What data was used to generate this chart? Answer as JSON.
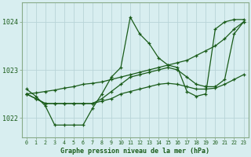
{
  "title": "Graphe pression niveau de la mer (hPa)",
  "bg_color": "#d8eef0",
  "grid_color": "#b8d4d8",
  "line_color": "#1a5c1a",
  "spine_color": "#88aa88",
  "xlim": [
    -0.5,
    23.5
  ],
  "ylim": [
    1021.6,
    1024.4
  ],
  "yticks": [
    1022,
    1023,
    1024
  ],
  "xticks": [
    0,
    1,
    2,
    3,
    4,
    5,
    6,
    7,
    8,
    9,
    10,
    11,
    12,
    13,
    14,
    15,
    16,
    17,
    18,
    19,
    20,
    21,
    22,
    23
  ],
  "series": [
    {
      "x": [
        0,
        1,
        2,
        3,
        4,
        5,
        6,
        7,
        8,
        9,
        10,
        11,
        12,
        13,
        14,
        15,
        16,
        17,
        18,
        19,
        20,
        21,
        22,
        23
      ],
      "y": [
        1022.6,
        1022.45,
        1022.25,
        1021.85,
        1021.85,
        1021.85,
        1021.85,
        1022.2,
        1022.5,
        1022.85,
        1023.05,
        1024.1,
        1023.75,
        1023.55,
        1023.25,
        1023.1,
        1023.05,
        1022.55,
        1022.45,
        1022.5,
        1023.85,
        1024.0,
        1024.05,
        1024.05
      ]
    },
    {
      "x": [
        0,
        1,
        2,
        3,
        4,
        5,
        6,
        7,
        8,
        9,
        10,
        11,
        12,
        13,
        14,
        15,
        16,
        17,
        18,
        19,
        20,
        21,
        22,
        23
      ],
      "y": [
        1022.5,
        1022.52,
        1022.55,
        1022.58,
        1022.62,
        1022.65,
        1022.7,
        1022.72,
        1022.75,
        1022.8,
        1022.85,
        1022.9,
        1022.95,
        1023.0,
        1023.05,
        1023.1,
        1023.15,
        1023.2,
        1023.3,
        1023.4,
        1023.5,
        1023.65,
        1023.85,
        1024.0
      ]
    },
    {
      "x": [
        0,
        1,
        2,
        3,
        4,
        5,
        6,
        7,
        8,
        9,
        10,
        11,
        12,
        13,
        14,
        15,
        16,
        17,
        18,
        19,
        20,
        21,
        22,
        23
      ],
      "y": [
        1022.5,
        1022.4,
        1022.3,
        1022.3,
        1022.3,
        1022.3,
        1022.3,
        1022.3,
        1022.35,
        1022.4,
        1022.5,
        1022.55,
        1022.6,
        1022.65,
        1022.7,
        1022.72,
        1022.7,
        1022.65,
        1022.6,
        1022.6,
        1022.62,
        1022.7,
        1022.8,
        1022.9
      ]
    },
    {
      "x": [
        0,
        1,
        2,
        3,
        4,
        5,
        6,
        7,
        8,
        9,
        10,
        11,
        12,
        13,
        14,
        15,
        16,
        17,
        18,
        19,
        20,
        21,
        22,
        23
      ],
      "y": [
        1022.5,
        1022.4,
        1022.3,
        1022.3,
        1022.3,
        1022.3,
        1022.3,
        1022.3,
        1022.4,
        1022.55,
        1022.7,
        1022.85,
        1022.9,
        1022.95,
        1023.0,
        1023.05,
        1023.0,
        1022.85,
        1022.7,
        1022.65,
        1022.65,
        1022.8,
        1023.75,
        1024.0
      ]
    }
  ]
}
